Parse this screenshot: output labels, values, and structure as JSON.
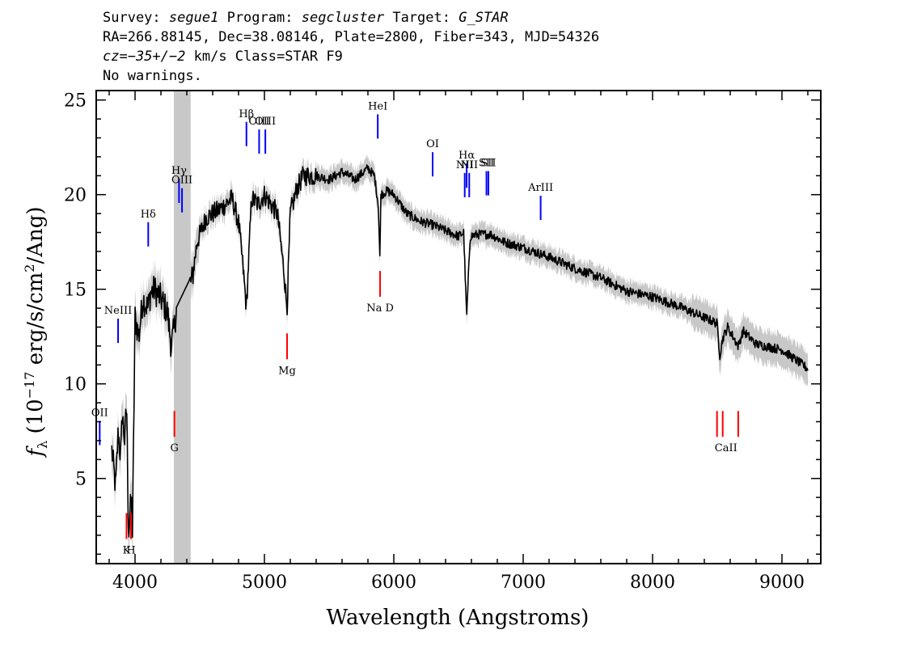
{
  "header": {
    "survey_label": "Survey:",
    "survey": "segue1",
    "program_label": "Program:",
    "program": "segcluster",
    "target_label": "Target:",
    "target": "G_STAR",
    "line2": "RA=266.88145, Dec=38.08146, Plate=2800, Fiber=343, MJD=54326",
    "cz_label": "cz=",
    "cz_value": "−35+/−2",
    "cz_rest": " km/s Class=STAR F9",
    "line4": "No warnings."
  },
  "chart_data": {
    "type": "line",
    "xlabel": "Wavelength (Angstroms)",
    "ylabel": "f_λ (10^-17 erg/s/cm^2/Ang)",
    "xlim": [
      3700,
      9300
    ],
    "ylim": [
      0.5,
      25.5
    ],
    "x_ticks": [
      4000,
      5000,
      6000,
      7000,
      8000,
      9000
    ],
    "y_ticks": [
      5,
      10,
      15,
      20,
      25
    ],
    "masked_region": [
      4300,
      4430
    ],
    "series": [
      {
        "style": "black-flux",
        "x": [
          3820,
          3850,
          3870,
          3890,
          3900,
          3920,
          3935,
          3950,
          3970,
          3980,
          4000,
          4030,
          4060,
          4100,
          4120,
          4150,
          4200,
          4250,
          4280,
          4300,
          4320,
          4440,
          4480,
          4550,
          4650,
          4750,
          4800,
          4830,
          4861,
          4900,
          4950,
          5000,
          5050,
          5100,
          5150,
          5175,
          5200,
          5250,
          5300,
          5400,
          5500,
          5600,
          5700,
          5800,
          5850,
          5880,
          5893,
          5900,
          5950,
          6000,
          6100,
          6200,
          6300,
          6400,
          6500,
          6540,
          6563,
          6590,
          6650,
          6750,
          6850,
          7000,
          7200,
          7400,
          7600,
          7800,
          8000,
          8200,
          8400,
          8498,
          8520,
          8542,
          8580,
          8662,
          8700,
          8800,
          9000,
          9100,
          9200
        ],
        "y": [
          6.5,
          4.5,
          7.5,
          6.0,
          8.5,
          7.0,
          9.0,
          2.0,
          4.0,
          2.0,
          13.5,
          12.5,
          14.5,
          14.0,
          14.8,
          15.0,
          14.5,
          13.8,
          12.0,
          12.8,
          14.0,
          15.5,
          17.5,
          18.8,
          19.2,
          19.8,
          18.5,
          16.5,
          14.0,
          19.8,
          19.5,
          20.0,
          19.5,
          19.0,
          16.0,
          14.0,
          19.0,
          20.3,
          21.0,
          21.0,
          20.8,
          21.2,
          20.8,
          21.4,
          21.0,
          19.5,
          16.5,
          20.0,
          20.2,
          20.0,
          19.0,
          18.6,
          18.4,
          18.1,
          17.8,
          18.0,
          13.5,
          17.8,
          17.9,
          17.9,
          17.5,
          17.2,
          16.7,
          16.1,
          15.6,
          14.9,
          14.6,
          14.1,
          13.5,
          13.2,
          11.5,
          12.4,
          13.0,
          12.0,
          12.8,
          12.1,
          11.8,
          11.3,
          10.8
        ]
      }
    ],
    "emission_lines": [
      {
        "label": "OII",
        "x": 3727,
        "y_label": 8.3
      },
      {
        "label": "NeIII",
        "x": 3869,
        "y_label": 13.7
      },
      {
        "label": "Hδ",
        "x": 4102,
        "y_label": 18.8
      },
      {
        "label": "Hγ",
        "x": 4340,
        "y_label": 21.1
      },
      {
        "label": "OIII",
        "x": 4363,
        "y_label": 20.6
      },
      {
        "label": "Hβ",
        "x": 4861,
        "y_label": 24.1
      },
      {
        "label": "OIII",
        "x": 4959,
        "y_label": 23.7
      },
      {
        "label": "OIII",
        "x": 5007,
        "y_label": 23.7
      },
      {
        "label": "HeI",
        "x": 5876,
        "y_label": 24.5
      },
      {
        "label": "OI",
        "x": 6300,
        "y_label": 22.5
      },
      {
        "label": "NII",
        "x": 6548,
        "y_label": 21.4
      },
      {
        "label": "Hα",
        "x": 6563,
        "y_label": 21.9
      },
      {
        "label": "NII",
        "x": 6583,
        "y_label": 21.4
      },
      {
        "label": "SII",
        "x": 6716,
        "y_label": 21.5
      },
      {
        "label": "SII",
        "x": 6731,
        "y_label": 21.5
      },
      {
        "label": "ArIII",
        "x": 7135,
        "y_label": 20.2
      }
    ],
    "absorption_lines": [
      {
        "label": "K",
        "x": 3934
      },
      {
        "label": "H",
        "x": 3969
      },
      {
        "label": "G",
        "x": 4304
      },
      {
        "label": "Mg",
        "x": 5175
      },
      {
        "label": "Na  D",
        "x": 5894
      },
      {
        "label": "CaII",
        "x": 8498
      },
      {
        "label": "CaII",
        "x": 8542
      },
      {
        "label": "CaII",
        "x": 8662
      }
    ]
  },
  "colors": {
    "flux": "#000000",
    "error": "#c8c8c8",
    "mask": "#c8c8c8",
    "emission": "#0000ff",
    "absorption": "#ff0000"
  }
}
